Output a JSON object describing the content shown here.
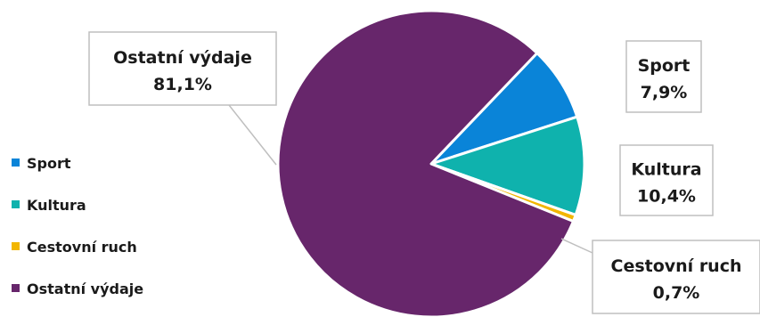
{
  "chart_data": {
    "type": "pie",
    "title": "",
    "slices": [
      {
        "label": "Sport",
        "value": 7.9,
        "display": "7,9%",
        "color": "#0a84d8"
      },
      {
        "label": "Kultura",
        "value": 10.4,
        "display": "10,4%",
        "color": "#0fb2ad"
      },
      {
        "label": "Cestovní ruch",
        "value": 0.7,
        "display": "0,7%",
        "color": "#f2b600"
      },
      {
        "label": "Ostatní výdaje",
        "value": 81.1,
        "display": "81,1%",
        "color": "#67266b"
      }
    ],
    "legend_position": "left",
    "data_labels": "callout boxes with category name and percent"
  }
}
